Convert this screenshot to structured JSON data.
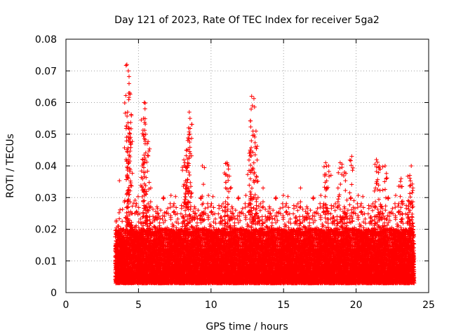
{
  "chart_data": {
    "type": "scatter",
    "title": "Day 121 of 2023, Rate Of TEC Index for receiver 5ga2",
    "xlabel": "GPS time / hours",
    "ylabel": "ROTI / TECUs",
    "xlim": [
      0,
      25
    ],
    "ylim": [
      0,
      0.08
    ],
    "x_ticks": [
      0,
      5,
      10,
      15,
      20,
      25
    ],
    "x_tick_labels": [
      "0",
      "5",
      "10",
      "15",
      "20",
      "25"
    ],
    "y_ticks": [
      0,
      0.01,
      0.02,
      0.03,
      0.04,
      0.05,
      0.06,
      0.07,
      0.08
    ],
    "y_tick_labels": [
      "0",
      "0.01",
      "0.02",
      "0.03",
      "0.04",
      "0.05",
      "0.06",
      "0.07",
      "0.08"
    ],
    "grid": true,
    "marker": "+",
    "series": [
      {
        "color": "#ff0000",
        "x_range": [
          3.4,
          24.0
        ],
        "typical_range": [
          0.003,
          0.02
        ],
        "peaks": [
          {
            "x": 4.2,
            "y": 0.072
          },
          {
            "x": 4.3,
            "y": 0.07
          },
          {
            "x": 4.35,
            "y": 0.066
          },
          {
            "x": 4.4,
            "y": 0.063
          },
          {
            "x": 4.25,
            "y": 0.057
          },
          {
            "x": 4.3,
            "y": 0.052
          },
          {
            "x": 4.45,
            "y": 0.049
          },
          {
            "x": 4.3,
            "y": 0.042
          },
          {
            "x": 5.4,
            "y": 0.06
          },
          {
            "x": 5.45,
            "y": 0.058
          },
          {
            "x": 5.35,
            "y": 0.055
          },
          {
            "x": 5.5,
            "y": 0.05
          },
          {
            "x": 5.6,
            "y": 0.047
          },
          {
            "x": 5.3,
            "y": 0.042
          },
          {
            "x": 8.5,
            "y": 0.057
          },
          {
            "x": 8.55,
            "y": 0.055
          },
          {
            "x": 8.45,
            "y": 0.052
          },
          {
            "x": 8.4,
            "y": 0.048
          },
          {
            "x": 8.3,
            "y": 0.045
          },
          {
            "x": 8.2,
            "y": 0.041
          },
          {
            "x": 9.4,
            "y": 0.04
          },
          {
            "x": 11.1,
            "y": 0.041
          },
          {
            "x": 11.2,
            "y": 0.039
          },
          {
            "x": 12.8,
            "y": 0.062
          },
          {
            "x": 12.85,
            "y": 0.059
          },
          {
            "x": 13.1,
            "y": 0.051
          },
          {
            "x": 13.05,
            "y": 0.046
          },
          {
            "x": 12.7,
            "y": 0.045
          },
          {
            "x": 12.9,
            "y": 0.039
          },
          {
            "x": 17.9,
            "y": 0.041
          },
          {
            "x": 18.1,
            "y": 0.04
          },
          {
            "x": 18.9,
            "y": 0.041
          },
          {
            "x": 19.2,
            "y": 0.038
          },
          {
            "x": 19.7,
            "y": 0.043
          },
          {
            "x": 21.4,
            "y": 0.042
          },
          {
            "x": 21.6,
            "y": 0.04
          },
          {
            "x": 22.0,
            "y": 0.04
          },
          {
            "x": 23.1,
            "y": 0.036
          },
          {
            "x": 23.8,
            "y": 0.04
          },
          {
            "x": 23.7,
            "y": 0.037
          }
        ]
      }
    ]
  }
}
